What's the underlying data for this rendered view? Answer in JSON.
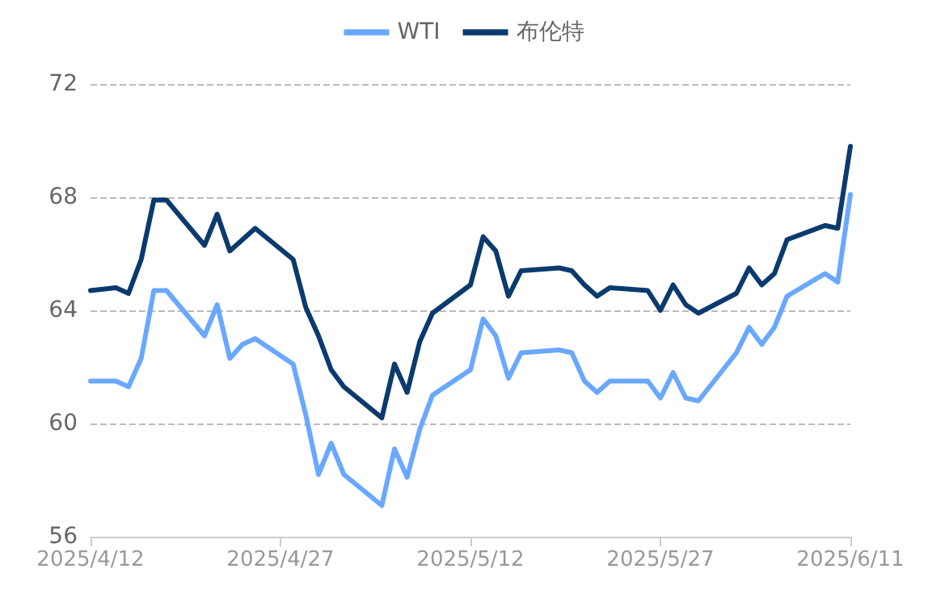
{
  "chart_data": {
    "type": "line",
    "x": [
      "2025-04-12",
      "2025-04-14",
      "2025-04-15",
      "2025-04-16",
      "2025-04-17",
      "2025-04-18",
      "2025-04-21",
      "2025-04-22",
      "2025-04-23",
      "2025-04-24",
      "2025-04-25",
      "2025-04-28",
      "2025-04-29",
      "2025-04-30",
      "2025-05-01",
      "2025-05-02",
      "2025-05-05",
      "2025-05-06",
      "2025-05-07",
      "2025-05-08",
      "2025-05-09",
      "2025-05-12",
      "2025-05-13",
      "2025-05-14",
      "2025-05-15",
      "2025-05-16",
      "2025-05-19",
      "2025-05-20",
      "2025-05-21",
      "2025-05-22",
      "2025-05-23",
      "2025-05-26",
      "2025-05-27",
      "2025-05-28",
      "2025-05-29",
      "2025-05-30",
      "2025-06-02",
      "2025-06-03",
      "2025-06-04",
      "2025-06-05",
      "2025-06-06",
      "2025-06-09",
      "2025-06-10",
      "2025-06-11"
    ],
    "series": [
      {
        "name": "WTI",
        "color": "#6aa8ff",
        "values": [
          61.5,
          61.5,
          61.3,
          62.3,
          64.7,
          64.7,
          63.1,
          64.2,
          62.3,
          62.8,
          63.0,
          62.1,
          60.3,
          58.2,
          59.3,
          58.2,
          57.1,
          59.1,
          58.1,
          59.8,
          61.0,
          61.9,
          63.7,
          63.1,
          61.6,
          62.5,
          62.6,
          62.5,
          61.5,
          61.1,
          61.5,
          61.5,
          60.9,
          61.8,
          60.9,
          60.8,
          62.5,
          63.4,
          62.8,
          63.4,
          64.5,
          65.3,
          65.0,
          68.1
        ]
      },
      {
        "name": "布伦特",
        "color": "#0a3a6e",
        "values": [
          64.7,
          64.8,
          64.6,
          65.8,
          67.9,
          67.9,
          66.3,
          67.4,
          66.1,
          66.5,
          66.9,
          65.8,
          64.1,
          63.1,
          61.9,
          61.3,
          60.2,
          62.1,
          61.1,
          62.9,
          63.9,
          64.9,
          66.6,
          66.1,
          64.5,
          65.4,
          65.5,
          65.4,
          64.9,
          64.5,
          64.8,
          64.7,
          64.0,
          64.9,
          64.2,
          63.9,
          64.6,
          65.5,
          64.9,
          65.3,
          66.5,
          67.0,
          66.9,
          69.8
        ]
      }
    ],
    "xlim": [
      "2025-04-12",
      "2025-06-11"
    ],
    "xticks": [
      {
        "value": "2025-04-12",
        "label": "2025/4/12"
      },
      {
        "value": "2025-04-27",
        "label": "2025/4/27"
      },
      {
        "value": "2025-05-12",
        "label": "2025/5/12"
      },
      {
        "value": "2025-05-27",
        "label": "2025/5/27"
      },
      {
        "value": "2025-06-11",
        "label": "2025/6/11"
      }
    ],
    "ylim": [
      56,
      72
    ],
    "yticks": [
      56,
      60,
      64,
      68,
      72
    ],
    "grid": "y",
    "legend": "top",
    "marker": "none",
    "line_style": "solid"
  }
}
